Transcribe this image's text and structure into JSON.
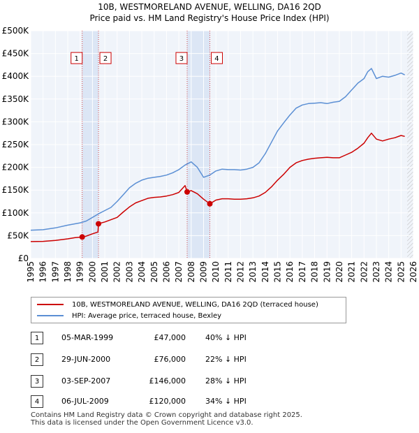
{
  "chart_data": {
    "type": "line",
    "title": "10B, WESTMORELAND AVENUE, WELLING, DA16 2QD",
    "subtitle": "Price paid vs. HM Land Registry's House Price Index (HPI)",
    "xlim": [
      1995,
      2026
    ],
    "ylim": [
      0,
      500000
    ],
    "x_ticks": [
      "1995",
      "1996",
      "1997",
      "1998",
      "1999",
      "2000",
      "2001",
      "2002",
      "2003",
      "2004",
      "2005",
      "2006",
      "2007",
      "2008",
      "2009",
      "2010",
      "2011",
      "2012",
      "2013",
      "2014",
      "2015",
      "2016",
      "2017",
      "2018",
      "2019",
      "2020",
      "2021",
      "2022",
      "2023",
      "2024",
      "2025",
      "2026"
    ],
    "y_ticks": [
      {
        "value": 0,
        "label": "£0"
      },
      {
        "value": 50000,
        "label": "£50K"
      },
      {
        "value": 100000,
        "label": "£100K"
      },
      {
        "value": 150000,
        "label": "£150K"
      },
      {
        "value": 200000,
        "label": "£200K"
      },
      {
        "value": 250000,
        "label": "£250K"
      },
      {
        "value": 300000,
        "label": "£300K"
      },
      {
        "value": 350000,
        "label": "£350K"
      },
      {
        "value": 400000,
        "label": "£400K"
      },
      {
        "value": 450000,
        "label": "£450K"
      },
      {
        "value": 500000,
        "label": "£500K"
      }
    ],
    "grid": true,
    "shaded_ranges": [
      [
        1999.17,
        2000.49
      ],
      [
        2007.67,
        2009.51
      ]
    ],
    "future_hatch_from": 2025.5,
    "series": [
      {
        "name": "10B, WESTMORELAND AVENUE, WELLING, DA16 2QD (terraced house)",
        "color": "#cc0000",
        "x": [
          1995.0,
          1996.0,
          1997.0,
          1998.0,
          1998.6,
          1999.17,
          1999.5,
          2000.0,
          2000.45,
          2000.49,
          2001.0,
          2002.0,
          2002.5,
          2003.0,
          2003.5,
          2004.0,
          2004.5,
          2005.0,
          2005.5,
          2006.0,
          2006.5,
          2007.0,
          2007.5,
          2007.67,
          2008.0,
          2008.5,
          2009.0,
          2009.51,
          2010.0,
          2010.5,
          2011.0,
          2011.5,
          2012.0,
          2012.5,
          2013.0,
          2013.5,
          2014.0,
          2014.5,
          2015.0,
          2015.5,
          2016.0,
          2016.5,
          2017.0,
          2017.5,
          2018.0,
          2018.5,
          2019.0,
          2019.5,
          2020.0,
          2020.5,
          2021.0,
          2021.5,
          2022.0,
          2022.3,
          2022.6,
          2023.0,
          2023.5,
          2024.0,
          2024.5,
          2025.0,
          2025.3
        ],
        "y": [
          37000,
          37500,
          39500,
          43000,
          45500,
          47000,
          49000,
          54000,
          58000,
          76000,
          80000,
          90000,
          102000,
          113000,
          122000,
          127000,
          132000,
          134000,
          135000,
          137000,
          140000,
          145000,
          160000,
          146000,
          149000,
          142000,
          130000,
          120000,
          128000,
          131000,
          131000,
          130000,
          130000,
          131000,
          133000,
          137000,
          145000,
          157000,
          172000,
          185000,
          200000,
          210000,
          215000,
          218000,
          220000,
          221000,
          222000,
          221000,
          221000,
          227000,
          233000,
          242000,
          253000,
          265000,
          275000,
          262000,
          258000,
          262000,
          265000,
          270000,
          268000
        ]
      },
      {
        "name": "HPI: Average price, terraced house, Bexley",
        "color": "#5b8fd4",
        "x": [
          1995.0,
          1996.0,
          1997.0,
          1998.0,
          1999.0,
          1999.5,
          2000.0,
          2000.5,
          2001.0,
          2001.5,
          2002.0,
          2002.5,
          2003.0,
          2003.5,
          2004.0,
          2004.5,
          2005.0,
          2005.5,
          2006.0,
          2006.5,
          2007.0,
          2007.5,
          2008.0,
          2008.5,
          2009.0,
          2009.5,
          2010.0,
          2010.5,
          2011.0,
          2011.5,
          2012.0,
          2012.5,
          2013.0,
          2013.5,
          2014.0,
          2014.5,
          2015.0,
          2015.5,
          2016.0,
          2016.5,
          2017.0,
          2017.5,
          2018.0,
          2018.5,
          2019.0,
          2019.5,
          2020.0,
          2020.5,
          2021.0,
          2021.5,
          2022.0,
          2022.3,
          2022.6,
          2023.0,
          2023.5,
          2024.0,
          2024.5,
          2025.0,
          2025.3
        ],
        "y": [
          62000,
          63000,
          67000,
          73000,
          78000,
          82000,
          90000,
          98000,
          105000,
          112000,
          125000,
          140000,
          155000,
          165000,
          172000,
          176000,
          178000,
          180000,
          183000,
          188000,
          195000,
          205000,
          212000,
          200000,
          178000,
          183000,
          192000,
          196000,
          195000,
          195000,
          194000,
          196000,
          200000,
          210000,
          230000,
          255000,
          280000,
          298000,
          315000,
          330000,
          337000,
          340000,
          341000,
          342000,
          340000,
          343000,
          345000,
          355000,
          370000,
          385000,
          395000,
          410000,
          417000,
          395000,
          400000,
          398000,
          402000,
          407000,
          403000
        ]
      }
    ],
    "markers": [
      {
        "id": "1",
        "x": 1999.17,
        "y": 47000,
        "box_value": 440000
      },
      {
        "id": "2",
        "x": 2000.49,
        "y": 76000,
        "box_value": 440000
      },
      {
        "id": "3",
        "x": 2007.67,
        "y": 146000,
        "box_value": 440000
      },
      {
        "id": "4",
        "x": 2009.51,
        "y": 120000,
        "box_value": 440000
      }
    ]
  },
  "legend": [
    {
      "label": "10B, WESTMORELAND AVENUE, WELLING, DA16 2QD (terraced house)",
      "color": "#cc0000"
    },
    {
      "label": "HPI: Average price, terraced house, Bexley",
      "color": "#5b8fd4"
    }
  ],
  "transactions": [
    {
      "id": "1",
      "date": "05-MAR-1999",
      "price": "£47,000",
      "hpi": "40% ↓ HPI"
    },
    {
      "id": "2",
      "date": "29-JUN-2000",
      "price": "£76,000",
      "hpi": "22% ↓ HPI"
    },
    {
      "id": "3",
      "date": "03-SEP-2007",
      "price": "£146,000",
      "hpi": "28% ↓ HPI"
    },
    {
      "id": "4",
      "date": "06-JUL-2009",
      "price": "£120,000",
      "hpi": "34% ↓ HPI"
    }
  ],
  "footer": {
    "line1": "Contains HM Land Registry data © Crown copyright and database right 2025.",
    "line2": "This data is licensed under the Open Government Licence v3.0."
  }
}
